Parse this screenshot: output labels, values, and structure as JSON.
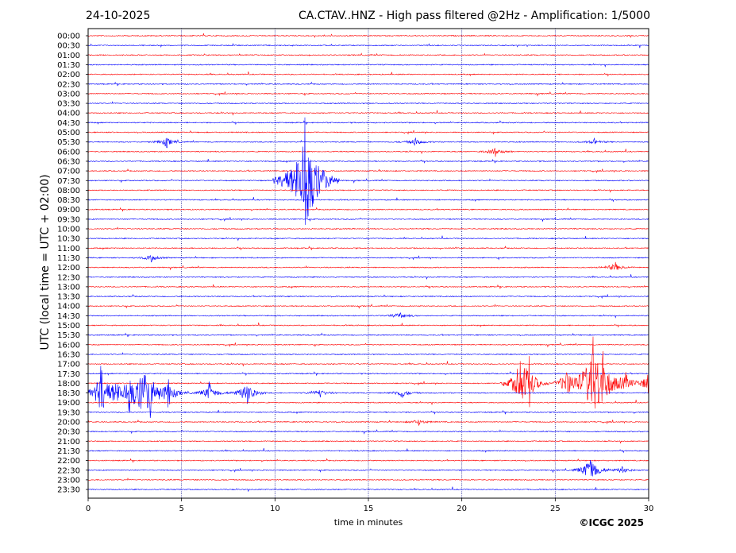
{
  "header": {
    "date": "24-10-2025",
    "title": "CA.CTAV..HNZ - High pass filtered @2Hz - Amplification: 1/5000"
  },
  "footer": {
    "copyright": "©ICGC 2025"
  },
  "chart_data": {
    "type": "line",
    "title": "CA.CTAV..HNZ - High pass filtered @2Hz - Amplification: 1/5000",
    "xlabel": "time in minutes",
    "ylabel": "UTC (local time = UTC + 02:00)",
    "xlim": [
      0,
      30
    ],
    "xticks": [
      0,
      5,
      10,
      15,
      20,
      25,
      30
    ],
    "vertical_grid_minutes": [
      5,
      10,
      15,
      20,
      25
    ],
    "row_labels": [
      "00:00",
      "00:30",
      "01:00",
      "01:30",
      "02:00",
      "02:30",
      "03:00",
      "03:30",
      "04:00",
      "04:30",
      "05:00",
      "05:30",
      "06:00",
      "06:30",
      "07:00",
      "07:30",
      "08:00",
      "08:30",
      "09:00",
      "09:30",
      "10:00",
      "10:30",
      "11:00",
      "11:30",
      "12:00",
      "12:30",
      "13:00",
      "13:30",
      "14:00",
      "14:30",
      "15:00",
      "15:30",
      "16:00",
      "16:30",
      "17:00",
      "17:30",
      "18:00",
      "18:30",
      "19:00",
      "19:30",
      "20:00",
      "20:30",
      "21:00",
      "21:30",
      "22:00",
      "22:30",
      "23:00",
      "23:30"
    ],
    "trace_colors": [
      "#ff0000",
      "#0000ff"
    ],
    "events": [
      {
        "row": "05:30",
        "minute": 4.2,
        "amplitude": 0.35
      },
      {
        "row": "05:30",
        "minute": 17.5,
        "amplitude": 0.25
      },
      {
        "row": "05:30",
        "minute": 27.1,
        "amplitude": 0.2
      },
      {
        "row": "06:00",
        "minute": 21.8,
        "amplitude": 0.3
      },
      {
        "row": "07:30",
        "minute": 11.65,
        "amplitude": 5.0
      },
      {
        "row": "11:30",
        "minute": 3.4,
        "amplitude": 0.25
      },
      {
        "row": "12:00",
        "minute": 28.2,
        "amplitude": 0.35
      },
      {
        "row": "14:30",
        "minute": 16.7,
        "amplitude": 0.25
      },
      {
        "row": "18:00",
        "minute": 23.1,
        "amplitude": 1.8
      },
      {
        "row": "18:00",
        "minute": 23.6,
        "amplitude": 1.4
      },
      {
        "row": "18:00",
        "minute": 25.6,
        "amplitude": 0.8
      },
      {
        "row": "18:00",
        "minute": 27.0,
        "amplitude": 2.8
      },
      {
        "row": "18:00",
        "minute": 27.5,
        "amplitude": 1.5
      },
      {
        "row": "18:00",
        "minute": 28.8,
        "amplitude": 0.6
      },
      {
        "row": "18:00",
        "minute": 29.95,
        "amplitude": 0.7
      },
      {
        "row": "18:30",
        "minute": 0.7,
        "amplitude": 2.0
      },
      {
        "row": "18:30",
        "minute": 1.5,
        "amplitude": 0.8
      },
      {
        "row": "18:30",
        "minute": 2.2,
        "amplitude": 1.1
      },
      {
        "row": "18:30",
        "minute": 2.9,
        "amplitude": 1.6
      },
      {
        "row": "18:30",
        "minute": 3.3,
        "amplitude": 1.4
      },
      {
        "row": "18:30",
        "minute": 4.3,
        "amplitude": 0.9
      },
      {
        "row": "18:30",
        "minute": 6.5,
        "amplitude": 0.7
      },
      {
        "row": "18:30",
        "minute": 8.5,
        "amplitude": 1.0
      },
      {
        "row": "18:30",
        "minute": 12.4,
        "amplitude": 0.3
      },
      {
        "row": "18:30",
        "minute": 16.8,
        "amplitude": 0.35
      },
      {
        "row": "20:00",
        "minute": 17.7,
        "amplitude": 0.2
      },
      {
        "row": "22:30",
        "minute": 26.9,
        "amplitude": 1.2
      },
      {
        "row": "22:30",
        "minute": 28.6,
        "amplitude": 0.25
      }
    ]
  }
}
